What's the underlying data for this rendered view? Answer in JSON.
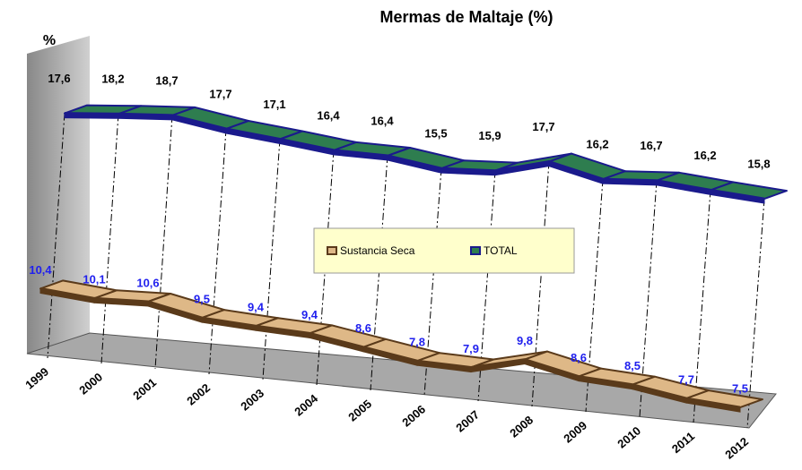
{
  "chart_data": {
    "type": "line3d",
    "title": "Mermas de Maltaje (%)",
    "ylabel": "%",
    "categories": [
      "1999",
      "2000",
      "2001",
      "2002",
      "2003",
      "2004",
      "2005",
      "2006",
      "2007",
      "2008",
      "2009",
      "2010",
      "2011",
      "2012"
    ],
    "ylim": [
      0,
      20
    ],
    "legend": "center",
    "series": [
      {
        "name": "Sustancia Seca",
        "color": "#deb887",
        "label_color": "#1f1fee",
        "values": [
          10.4,
          10.1,
          10.6,
          9.5,
          9.4,
          9.4,
          8.6,
          7.8,
          7.9,
          9.8,
          8.6,
          8.5,
          7.7,
          7.5
        ],
        "value_labels": [
          "10,4",
          "10,1",
          "10,6",
          "9,5",
          "9,4",
          "9,4",
          "8,6",
          "7,8",
          "7,9",
          "9,8",
          "8,6",
          "8,5",
          "7,7",
          "7,5"
        ]
      },
      {
        "name": "TOTAL",
        "color": "#2e7d4f",
        "label_color": "#000000",
        "values": [
          17.6,
          18.2,
          18.7,
          17.7,
          17.1,
          16.4,
          16.4,
          15.5,
          15.9,
          17.7,
          16.2,
          16.7,
          16.2,
          15.8
        ],
        "value_labels": [
          "17,6",
          "18,2",
          "18,7",
          "17,7",
          "17,1",
          "16,4",
          "16,4",
          "15,5",
          "15,9",
          "17,7",
          "16,2",
          "16,7",
          "16,2",
          "15,8"
        ]
      }
    ]
  }
}
